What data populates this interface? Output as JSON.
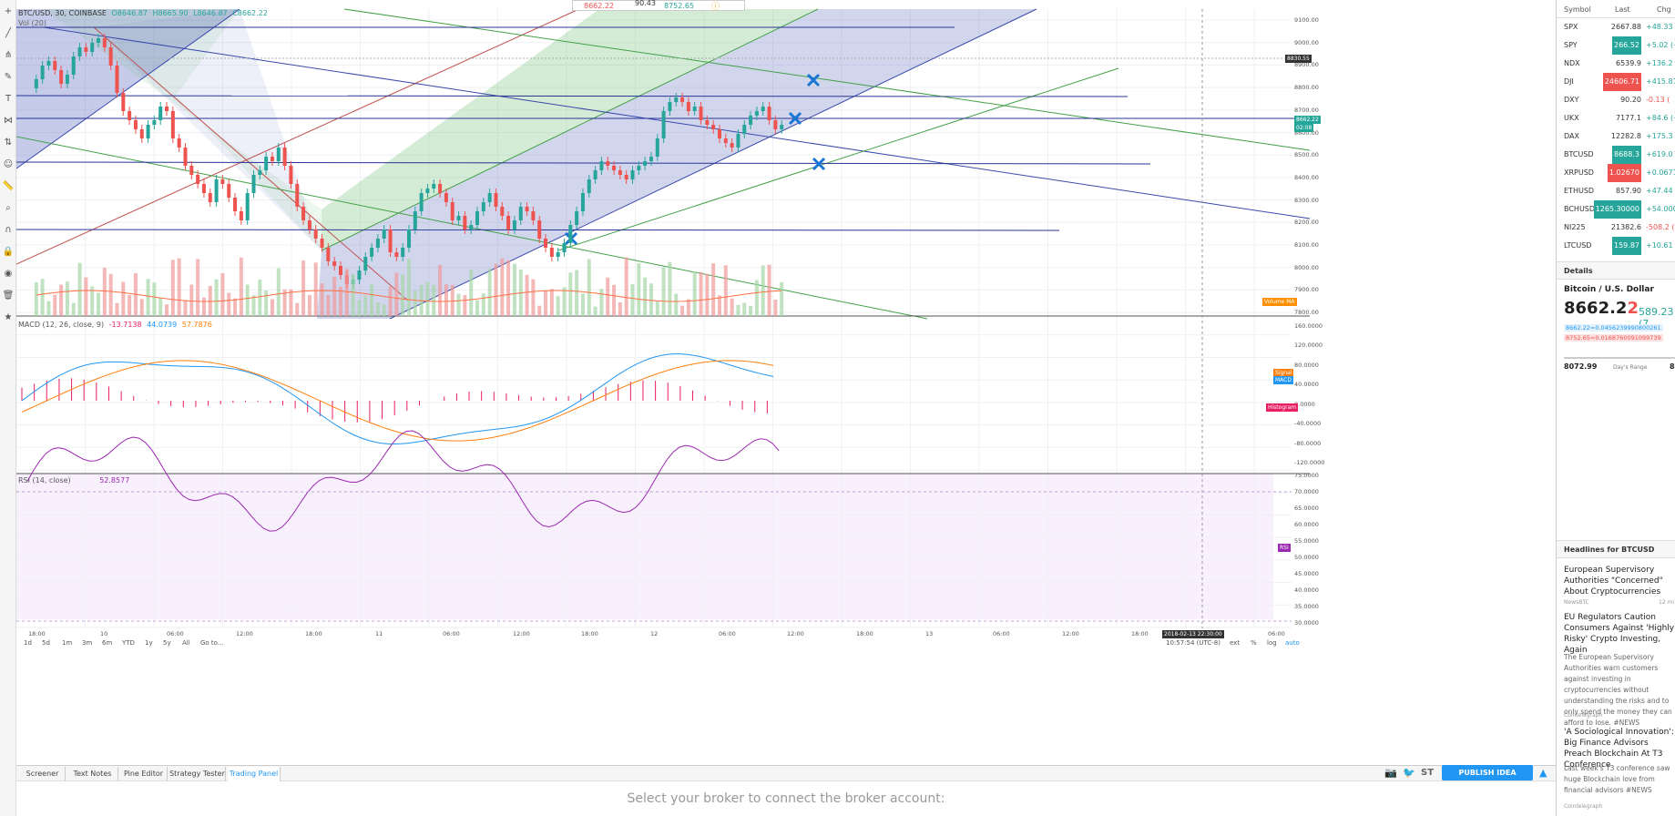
{
  "chart_header": {
    "symbol": "BTC/USD, 30, COINBASE",
    "open": "O8646.87",
    "high": "H8665.90",
    "low": "L8646.87",
    "close": "C8662.22",
    "volume_label": "Vol (20)"
  },
  "top_popup": {
    "a": "8662.22",
    "b": "90.43",
    "c": "8752.65"
  },
  "price_axis": [
    "9100.00",
    "9000.00",
    "8900.00",
    "8800.00",
    "8700.00",
    "8600.00",
    "8500.00",
    "8400.00",
    "8300.00",
    "8200.00",
    "8100.00",
    "8000.00",
    "7900.00",
    "7800.00"
  ],
  "price_tags": {
    "crosshair": "8830.55",
    "current": "8662.22",
    "current2": "02:08"
  },
  "macd": {
    "label": "MACD (12, 26, close, 9)",
    "v1": "-13.7138",
    "v2": "44.0739",
    "v3": "57.7876",
    "axis": [
      "160.0000",
      "120.0000",
      "80.0000",
      "40.0000",
      "0.0000",
      "-40.0000",
      "-80.0000",
      "-120.0000"
    ],
    "tag_signal": "Signal",
    "tag_macd": "MACD",
    "tag_hist": "Histogram"
  },
  "rsi": {
    "label": "RSI (14, close)",
    "value": "52.8577",
    "axis": [
      "75.0000",
      "70.0000",
      "65.0000",
      "60.0000",
      "55.0000",
      "50.0000",
      "45.0000",
      "40.0000",
      "35.0000",
      "30.0000"
    ],
    "tag": "RSI"
  },
  "volume_ma_tag": "Volume MA",
  "time_axis": [
    "18:00",
    "10",
    "06:00",
    "12:00",
    "18:00",
    "11",
    "06:00",
    "12:00",
    "18:00",
    "12",
    "06:00",
    "12:00",
    "18:00",
    "13",
    "06:00",
    "12:00",
    "18:00",
    "06:00"
  ],
  "crosshair_time": "2018-02-13 22:30:00",
  "utc_time": "10:57:54 (UTC-8)",
  "range_buttons": [
    "1d",
    "5d",
    "1m",
    "3m",
    "6m",
    "YTD",
    "1y",
    "5y",
    "All",
    "Go to..."
  ],
  "scale_opts": [
    "ext",
    "%",
    "log",
    "auto"
  ],
  "bottom_tabs": [
    "Screener",
    "Text Notes",
    "Pine Editor",
    "Strategy Tester",
    "Trading Panel"
  ],
  "publish_label": "PUBLISH IDEA",
  "broker_message": "Select your broker to connect the broker account:",
  "watchlist": {
    "headers": [
      "Symbol",
      "Last",
      "Chg"
    ],
    "rows": [
      {
        "symbol": "SPX",
        "last": "2667.88",
        "chg": "+48.33 (+"
      },
      {
        "symbol": "SPY",
        "last": "266.52",
        "chg": "+5.02 (+"
      },
      {
        "symbol": "NDX",
        "last": "6539.9",
        "chg": "+136.2 (+"
      },
      {
        "symbol": "DJI",
        "last": "24606.71",
        "chg": "+415.81 (+"
      },
      {
        "symbol": "DXY",
        "last": "90.20",
        "chg": "-0.13 ("
      },
      {
        "symbol": "UKX",
        "last": "7177.1",
        "chg": "+84.6 (+"
      },
      {
        "symbol": "DAX",
        "last": "12282.8",
        "chg": "+175.3 (+"
      },
      {
        "symbol": "BTCUSD",
        "last": "8688.3",
        "chg": "+619.0 (+"
      },
      {
        "symbol": "XRPUSD",
        "last": "1.02670",
        "chg": "+0.06712 (+"
      },
      {
        "symbol": "ETHUSD",
        "last": "857.90",
        "chg": "+47.44 (+"
      },
      {
        "symbol": "BCHUSD",
        "last": "1265.30000",
        "chg": "+54.00000"
      },
      {
        "symbol": "NI225",
        "last": "21382.6",
        "chg": "-508.2 ("
      },
      {
        "symbol": "LTCUSD",
        "last": "159.87",
        "chg": "+10.61 (+"
      }
    ]
  },
  "details": {
    "head": "Details",
    "name": "Bitcoin / U.S. Dollar",
    "price_main": "8662.2",
    "price_last_digit": "2",
    "change": "589.23 (7",
    "line1": "8662.22=0.0456239990800261",
    "line2": "8752.65=0.0168760091099739",
    "range_low": "8072.99",
    "range_label": "Day's Range",
    "range_high": "8"
  },
  "headlines": {
    "head": "Headlines for BTCUSD",
    "items": [
      {
        "title": "European Supervisory Authorities \"Concerned\" About Cryptocurrencies",
        "source": "NewsBTC",
        "time": "12 mi"
      },
      {
        "title": "EU Regulators Caution Consumers Against 'Highly Risky' Crypto Investing, Again",
        "source": "Cointelegraph",
        "body": "The European Supervisory Authorities warn customers against investing in cryptocurrencies without understanding the risks and to only spend the money they can afford to lose. #NEWS"
      },
      {
        "title": "'A Sociological Innovation': Big Finance Advisors Preach Blockchain At T3 Conference",
        "source": "Cointelegraph",
        "body": "Last week's T3 conference saw huge Blockchain love from financial advisors #NEWS"
      }
    ]
  }
}
